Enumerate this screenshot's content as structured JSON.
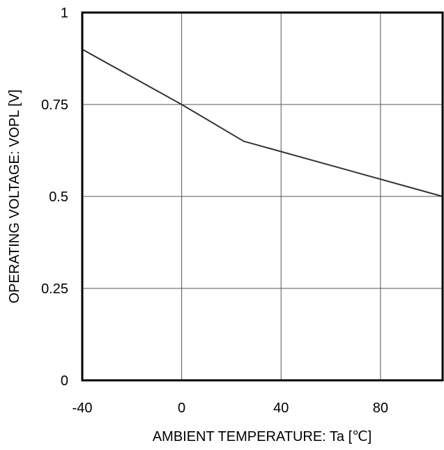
{
  "chart_data": {
    "type": "line",
    "xlabel": "AMBIENT TEMPERATURE: Ta [℃]",
    "ylabel": "OPERATING VOLTAGE: VOPL [V]",
    "xlim": [
      -40,
      105
    ],
    "ylim": [
      0,
      1
    ],
    "x_ticks": [
      -40,
      0,
      40,
      80
    ],
    "x_tick_labels": [
      "-40",
      "0",
      "40",
      "80"
    ],
    "y_ticks": [
      0,
      0.25,
      0.5,
      0.75,
      1
    ],
    "y_tick_labels": [
      "0",
      "0.25",
      "0.5",
      "0.75",
      "1"
    ],
    "grid": true,
    "series": [
      {
        "x": [
          -40,
          0,
          25,
          105
        ],
        "y": [
          0.9,
          0.75,
          0.65,
          0.5
        ]
      }
    ],
    "colors": {
      "line": "#333333",
      "grid": "#555555",
      "frame": "#000000"
    }
  }
}
